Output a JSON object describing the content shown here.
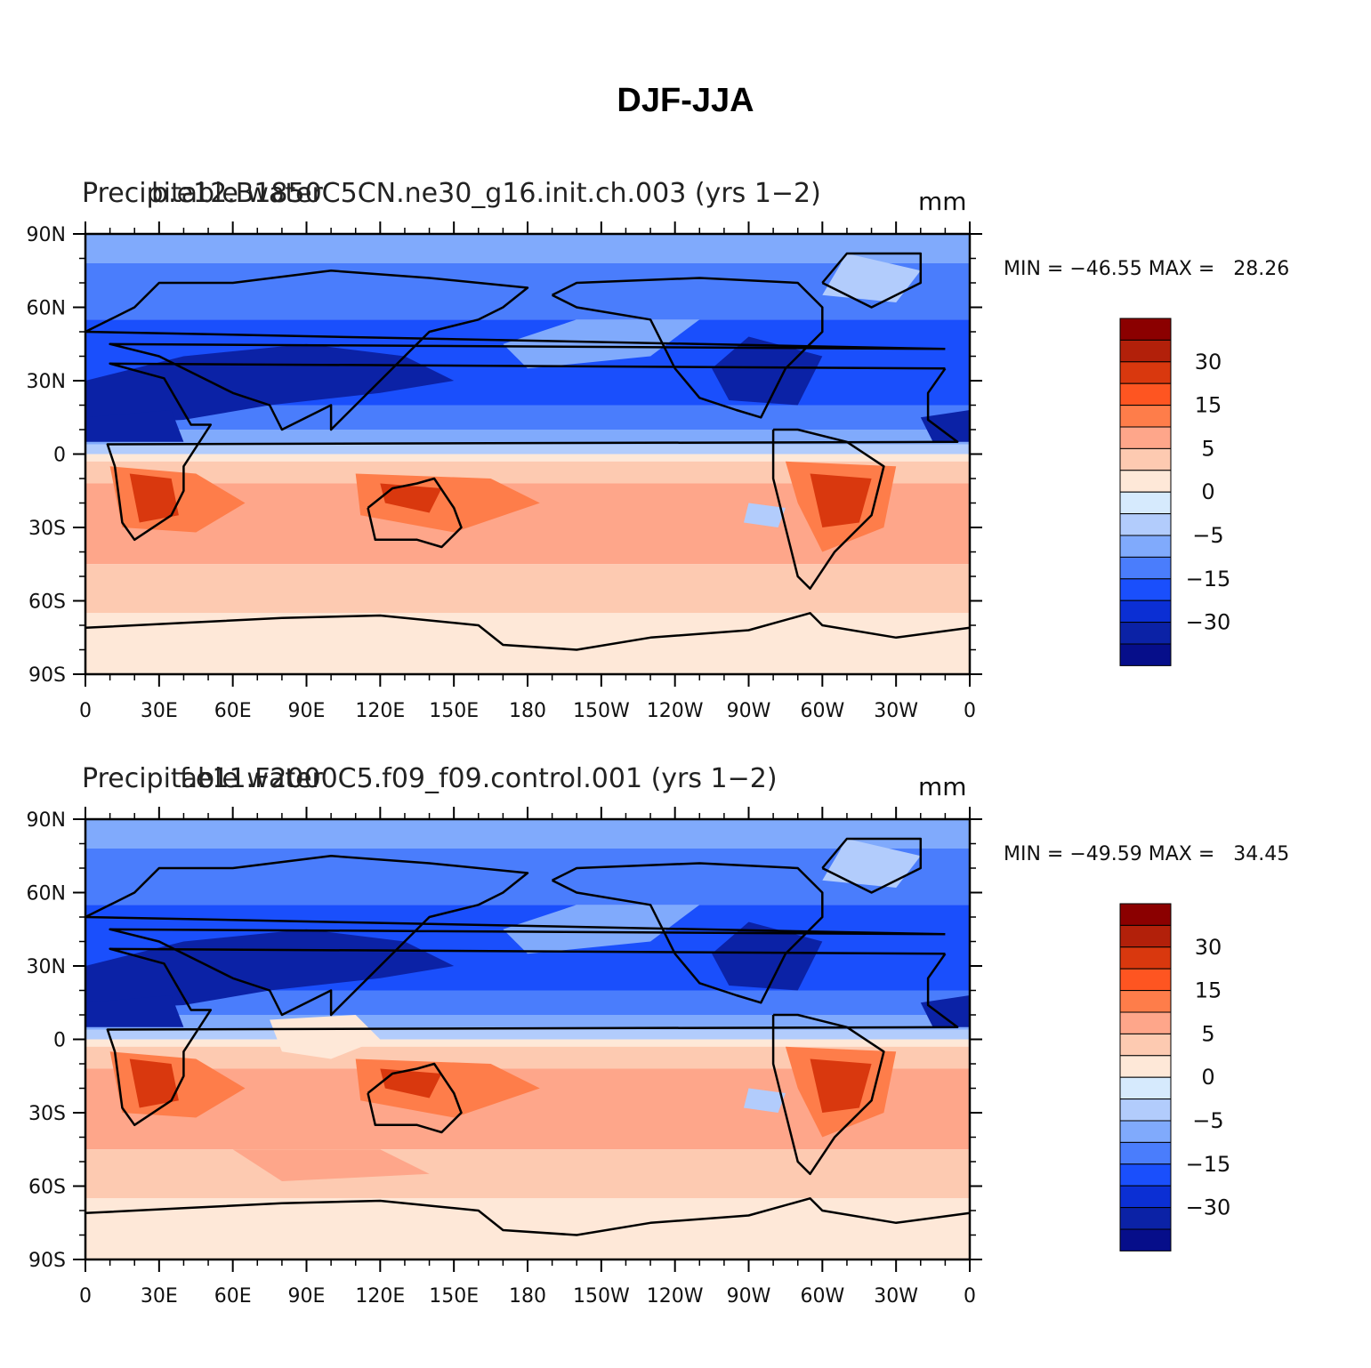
{
  "figure": {
    "title": "DJF-JJA"
  },
  "colorbar": {
    "colors": [
      "#8b0000",
      "#b2200a",
      "#d9380e",
      "#fe5521",
      "#fe7d4a",
      "#fea68a",
      "#fdcab1",
      "#fee8d8",
      "#d6eafd",
      "#b2ccfc",
      "#80aafc",
      "#4a7dfc",
      "#1a4ffc",
      "#0b2fd4",
      "#0b22a6",
      "#060e8a"
    ],
    "labels": [
      "30",
      "15",
      "5",
      "0",
      "−5",
      "−15",
      "−30"
    ]
  },
  "panels": [
    {
      "id": "top",
      "title_left": "Precipitable water",
      "title_case": "b.e12.B1850C5CN.ne30_g16.init.ch.003 (yrs 1−2)",
      "units": "mm",
      "minmax": "MIN = −46.55 MAX =   28.26"
    },
    {
      "id": "bottom",
      "title_left": "Precipitable water",
      "title_case": "f.e11.F2000C5.f09_f09.control.001 (yrs 1−2)",
      "units": "mm",
      "minmax": "MIN = −49.59 MAX =   34.45"
    }
  ],
  "axes": {
    "lat_ticks": [
      "90N",
      "60N",
      "30N",
      "0",
      "30S",
      "60S",
      "90S"
    ],
    "lon_ticks": [
      "0",
      "30E",
      "60E",
      "90E",
      "120E",
      "150E",
      "180",
      "150W",
      "120W",
      "90W",
      "60W",
      "30W",
      "0"
    ]
  },
  "map_colors": {
    "deep_blue": "#0b22a6",
    "blue": "#1a4ffc",
    "mid_blue": "#4a7dfc",
    "light_blue": "#80aafc",
    "pale_blue": "#b2ccfc",
    "peach": "#fee8d8",
    "light_salmon": "#fdcab1",
    "salmon": "#fea68a",
    "orange": "#fe7d4a",
    "red_orange": "#d9380e",
    "coast": "#000000"
  }
}
